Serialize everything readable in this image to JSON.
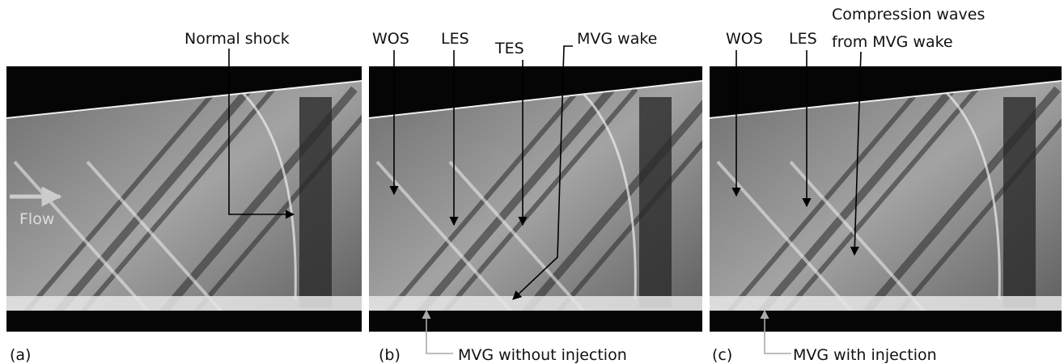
{
  "figure": {
    "panels": [
      {
        "label": "(a)",
        "annotations": [
          "Normal shock",
          "Flow"
        ]
      },
      {
        "label": "(b)",
        "annotations": [
          "WOS",
          "LES",
          "TES",
          "MVG wake",
          "MVG without injection"
        ]
      },
      {
        "label": "(c)",
        "annotations": [
          "WOS",
          "LES",
          "Compression waves",
          "from MVG wake",
          "MVG with injection"
        ]
      }
    ]
  }
}
